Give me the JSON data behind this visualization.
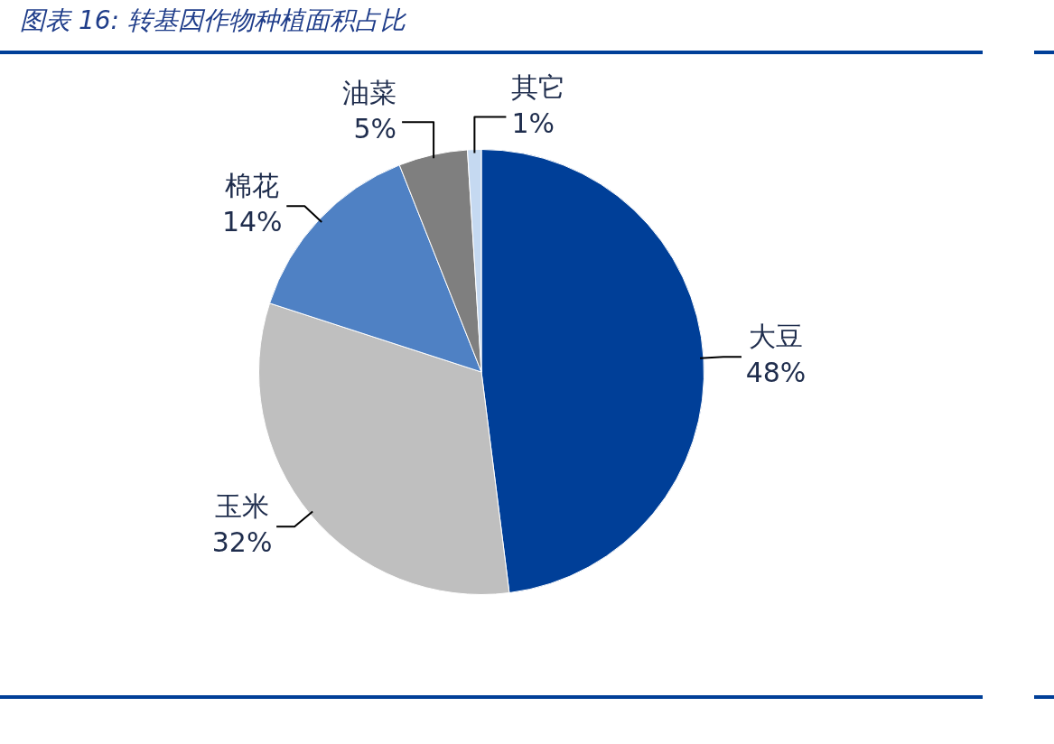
{
  "chart_data": {
    "type": "pie",
    "title": "图表 16:  转基因作物种植面积占比",
    "categories": [
      "大豆",
      "玉米",
      "棉花",
      "油菜",
      "其它"
    ],
    "values": [
      48,
      32,
      14,
      5,
      1
    ],
    "value_labels": [
      "48%",
      "32%",
      "14%",
      "5%",
      "1%"
    ],
    "colors": [
      "#003f98",
      "#bfbfbf",
      "#4f81c4",
      "#7f7f7f",
      "#c5d9f1"
    ],
    "legend": false
  }
}
